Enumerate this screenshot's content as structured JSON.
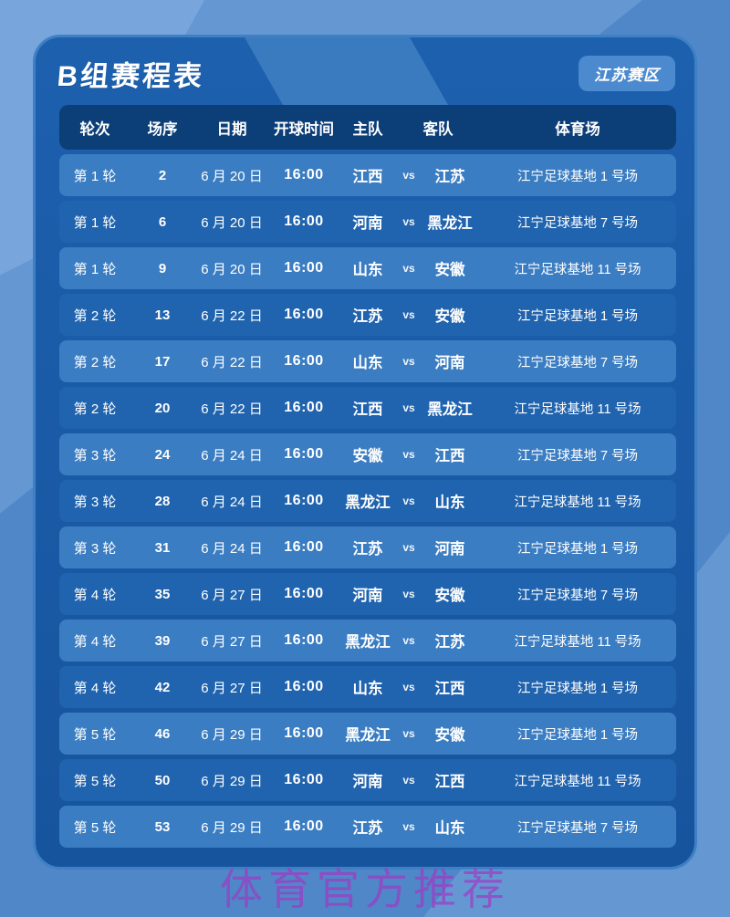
{
  "page": {
    "title": "B组赛程表",
    "region_badge": "江苏赛区",
    "watermark": "体育官方推荐"
  },
  "colors": {
    "bg": "#4f87c8",
    "bg-light": "#6598d3",
    "bg-lighter": "#78a6dc",
    "card": "#1d60ae",
    "card-deep": "#17549e",
    "card-border": "#3f80c5",
    "band": "#3a7bc0",
    "header-bar": "#0c3e78",
    "row-light": "#3b7dc2",
    "row-dark": "#2063ae",
    "badge-bg": "#4c8acf",
    "text": "#ffffff",
    "watermark": "rgba(158,60,196,0.72)"
  },
  "table": {
    "vs_label": "vs",
    "headers": {
      "round": "轮次",
      "match_no": "场序",
      "date": "日期",
      "kickoff": "开球时间",
      "home": "主队",
      "away": "客队",
      "stadium": "体育场"
    },
    "rows": [
      {
        "round": "第 1 轮",
        "match_no": "2",
        "date": "6 月 20 日",
        "kickoff": "16:00",
        "home": "江西",
        "away": "江苏",
        "stadium": "江宁足球基地 1 号场"
      },
      {
        "round": "第 1 轮",
        "match_no": "6",
        "date": "6 月 20 日",
        "kickoff": "16:00",
        "home": "河南",
        "away": "黑龙江",
        "stadium": "江宁足球基地 7 号场"
      },
      {
        "round": "第 1 轮",
        "match_no": "9",
        "date": "6 月 20 日",
        "kickoff": "16:00",
        "home": "山东",
        "away": "安徽",
        "stadium": "江宁足球基地 11 号场"
      },
      {
        "round": "第 2 轮",
        "match_no": "13",
        "date": "6 月 22 日",
        "kickoff": "16:00",
        "home": "江苏",
        "away": "安徽",
        "stadium": "江宁足球基地 1 号场"
      },
      {
        "round": "第 2 轮",
        "match_no": "17",
        "date": "6 月 22 日",
        "kickoff": "16:00",
        "home": "山东",
        "away": "河南",
        "stadium": "江宁足球基地 7 号场"
      },
      {
        "round": "第 2 轮",
        "match_no": "20",
        "date": "6 月 22 日",
        "kickoff": "16:00",
        "home": "江西",
        "away": "黑龙江",
        "stadium": "江宁足球基地 11 号场"
      },
      {
        "round": "第 3 轮",
        "match_no": "24",
        "date": "6 月 24 日",
        "kickoff": "16:00",
        "home": "安徽",
        "away": "江西",
        "stadium": "江宁足球基地 7 号场"
      },
      {
        "round": "第 3 轮",
        "match_no": "28",
        "date": "6 月 24 日",
        "kickoff": "16:00",
        "home": "黑龙江",
        "away": "山东",
        "stadium": "江宁足球基地 11 号场"
      },
      {
        "round": "第 3 轮",
        "match_no": "31",
        "date": "6 月 24 日",
        "kickoff": "16:00",
        "home": "江苏",
        "away": "河南",
        "stadium": "江宁足球基地 1 号场"
      },
      {
        "round": "第 4 轮",
        "match_no": "35",
        "date": "6 月 27 日",
        "kickoff": "16:00",
        "home": "河南",
        "away": "安徽",
        "stadium": "江宁足球基地 7 号场"
      },
      {
        "round": "第 4 轮",
        "match_no": "39",
        "date": "6 月 27 日",
        "kickoff": "16:00",
        "home": "黑龙江",
        "away": "江苏",
        "stadium": "江宁足球基地 11 号场"
      },
      {
        "round": "第 4 轮",
        "match_no": "42",
        "date": "6 月 27 日",
        "kickoff": "16:00",
        "home": "山东",
        "away": "江西",
        "stadium": "江宁足球基地 1 号场"
      },
      {
        "round": "第 5 轮",
        "match_no": "46",
        "date": "6 月 29 日",
        "kickoff": "16:00",
        "home": "黑龙江",
        "away": "安徽",
        "stadium": "江宁足球基地 1 号场"
      },
      {
        "round": "第 5 轮",
        "match_no": "50",
        "date": "6 月 29 日",
        "kickoff": "16:00",
        "home": "河南",
        "away": "江西",
        "stadium": "江宁足球基地 11 号场"
      },
      {
        "round": "第 5 轮",
        "match_no": "53",
        "date": "6 月 29 日",
        "kickoff": "16:00",
        "home": "江苏",
        "away": "山东",
        "stadium": "江宁足球基地 7 号场"
      }
    ]
  }
}
